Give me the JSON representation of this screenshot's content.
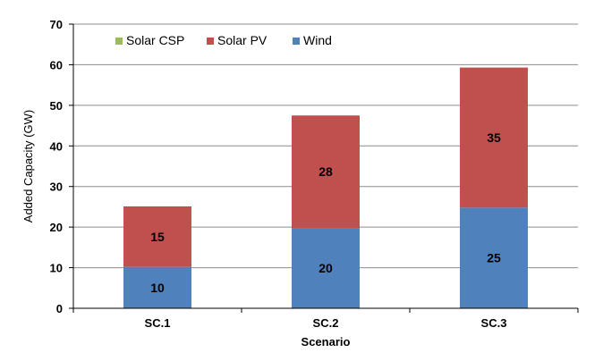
{
  "chart_data": {
    "type": "bar",
    "stacked": true,
    "title": "",
    "xlabel": "Scenario",
    "ylabel": "Added Capacity (GW)",
    "ylim": [
      0,
      70
    ],
    "ytick_step": 10,
    "grid": true,
    "legend_position": "top-left",
    "categories": [
      "SC.1",
      "SC.2",
      "SC.3"
    ],
    "series": [
      {
        "name": "Wind",
        "color": "#4F81BD",
        "values": [
          10.2,
          19.8,
          24.8
        ],
        "labels": [
          "10",
          "20",
          "25"
        ]
      },
      {
        "name": "Solar PV",
        "color": "#C0504D",
        "values": [
          14.9,
          27.7,
          34.5
        ],
        "labels": [
          "15",
          "28",
          "35"
        ]
      },
      {
        "name": "Solar CSP",
        "color": "#9BBB59",
        "values": [
          0,
          0,
          0
        ],
        "labels": [
          "",
          "",
          ""
        ]
      }
    ],
    "legend_order": [
      "Solar CSP",
      "Solar PV",
      "Wind"
    ]
  }
}
